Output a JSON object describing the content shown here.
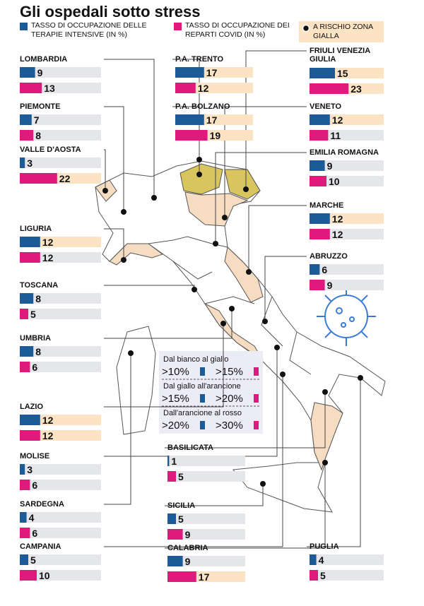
{
  "chart_data": {
    "type": "bar",
    "title": "Gli ospedali sotto stress",
    "risk_label": "A RISCHIO ZONA GIALLA",
    "categories": [
      "LOMBARDIA",
      "P.A. TRENTO",
      "FRIULI VENEZIA GIULIA",
      "PIEMONTE",
      "P.A. BOLZANO",
      "VENETO",
      "VALLE D'AOSTA",
      "EMILIA ROMAGNA",
      "LIGURIA",
      "MARCHE",
      "ABRUZZO",
      "TOSCANA",
      "UMBRIA",
      "LAZIO",
      "MOLISE",
      "BASILICATA",
      "SARDEGNA",
      "SICILIA",
      "CAMPANIA",
      "CALABRIA",
      "PUGLIA"
    ],
    "series": [
      {
        "name": "TASSO DI OCCUPAZIONE DELLE TERAPIE INTENSIVE (IN %)",
        "color": "#1c5b98",
        "values": [
          9,
          17,
          15,
          7,
          17,
          12,
          3,
          9,
          12,
          12,
          6,
          8,
          8,
          12,
          3,
          1,
          4,
          5,
          5,
          9,
          4
        ],
        "highlight": [
          false,
          true,
          true,
          false,
          true,
          true,
          false,
          false,
          true,
          true,
          false,
          false,
          false,
          true,
          false,
          false,
          false,
          false,
          false,
          false,
          false
        ]
      },
      {
        "name": "TASSO DI OCCUPAZIONE DEI REPARTI COVID (IN %)",
        "color": "#e0197d",
        "values": [
          13,
          12,
          23,
          8,
          19,
          11,
          22,
          10,
          12,
          12,
          9,
          5,
          6,
          12,
          6,
          5,
          6,
          9,
          10,
          17,
          5
        ],
        "highlight": [
          false,
          true,
          true,
          false,
          true,
          false,
          true,
          false,
          false,
          false,
          false,
          false,
          false,
          true,
          false,
          false,
          false,
          false,
          false,
          true,
          false
        ]
      }
    ],
    "thresholds": [
      {
        "label": "Dal bianco al giallo",
        "icu": ">10%",
        "covid": ">15%"
      },
      {
        "label": "Dal giallo all'arancione",
        "icu": ">15%",
        "covid": ">20%"
      },
      {
        "label": "Dall'arancione al rosso",
        "icu": ">20%",
        "covid": ">30%"
      }
    ]
  }
}
